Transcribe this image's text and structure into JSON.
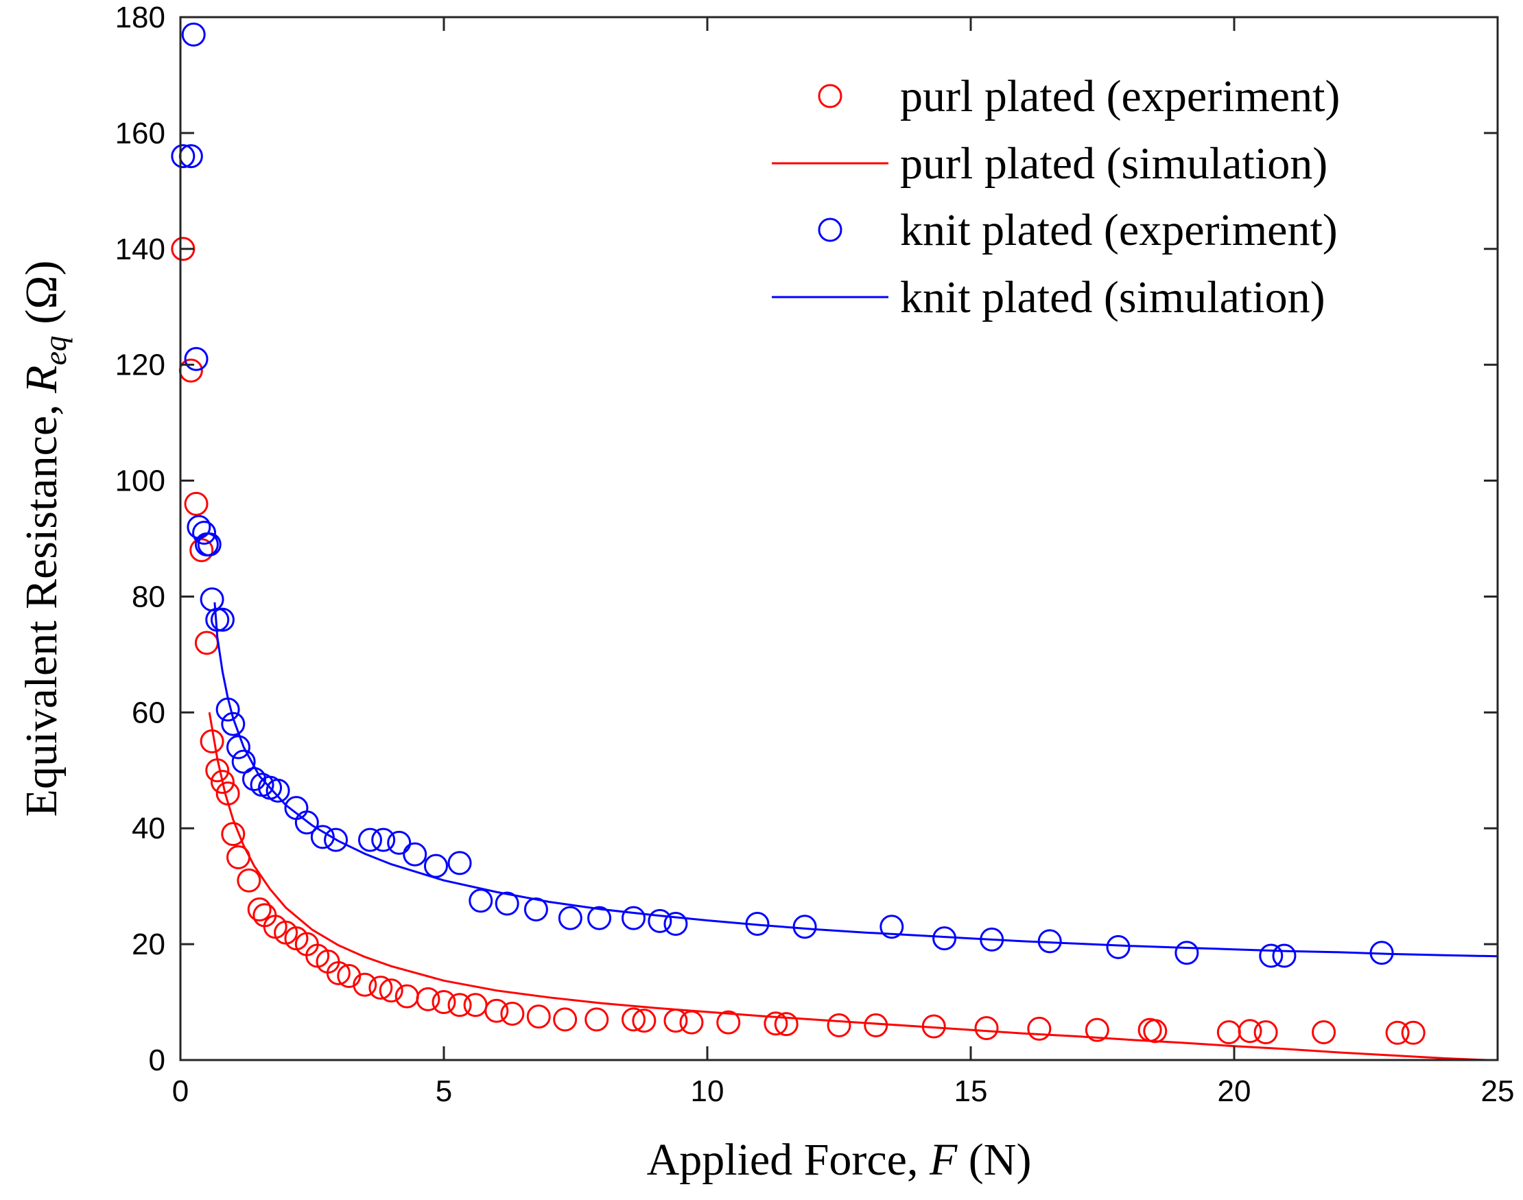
{
  "chart_data": {
    "type": "scatter",
    "title": "",
    "xlabel": "Applied Force, F (N)",
    "xlabel_parts": [
      "Applied Force, ",
      "F",
      " (N)"
    ],
    "ylabel": "Equivalent Resistance, R_eq (Ω)",
    "ylabel_parts": [
      "Equivalent Resistance, ",
      "R",
      "eq",
      " (Ω)"
    ],
    "xlim": [
      0,
      25
    ],
    "ylim": [
      0,
      180
    ],
    "xticks": [
      0,
      5,
      10,
      15,
      20,
      25
    ],
    "yticks": [
      0,
      20,
      40,
      60,
      80,
      100,
      120,
      140,
      160,
      180
    ],
    "grid": false,
    "legend_position": "top-right",
    "series": [
      {
        "name": "purl plated (experiment)",
        "kind": "markers",
        "color": "#ff0000",
        "points": [
          [
            0.05,
            140
          ],
          [
            0.2,
            119
          ],
          [
            0.3,
            96
          ],
          [
            0.4,
            88
          ],
          [
            0.5,
            72
          ],
          [
            0.6,
            55
          ],
          [
            0.7,
            50
          ],
          [
            0.8,
            48
          ],
          [
            0.9,
            46
          ],
          [
            1.0,
            39
          ],
          [
            1.1,
            35
          ],
          [
            1.3,
            31
          ],
          [
            1.5,
            26
          ],
          [
            1.6,
            25
          ],
          [
            1.8,
            23
          ],
          [
            2.0,
            22
          ],
          [
            2.2,
            21
          ],
          [
            2.4,
            20
          ],
          [
            2.6,
            18
          ],
          [
            2.8,
            17
          ],
          [
            3.0,
            15
          ],
          [
            3.2,
            14.5
          ],
          [
            3.5,
            13
          ],
          [
            3.8,
            12.5
          ],
          [
            4.0,
            12
          ],
          [
            4.3,
            11
          ],
          [
            4.7,
            10.5
          ],
          [
            5.0,
            10
          ],
          [
            5.3,
            9.5
          ],
          [
            5.6,
            9.5
          ],
          [
            6.0,
            8.5
          ],
          [
            6.3,
            8
          ],
          [
            6.8,
            7.5
          ],
          [
            7.3,
            7
          ],
          [
            7.9,
            7
          ],
          [
            8.6,
            7
          ],
          [
            8.8,
            6.8
          ],
          [
            9.4,
            6.8
          ],
          [
            9.7,
            6.5
          ],
          [
            10.4,
            6.5
          ],
          [
            11.3,
            6.3
          ],
          [
            11.5,
            6.2
          ],
          [
            12.5,
            6
          ],
          [
            13.2,
            6
          ],
          [
            14.3,
            5.8
          ],
          [
            15.3,
            5.5
          ],
          [
            16.3,
            5.4
          ],
          [
            17.4,
            5.2
          ],
          [
            18.4,
            5.2
          ],
          [
            18.5,
            5
          ],
          [
            19.9,
            4.8
          ],
          [
            20.3,
            5
          ],
          [
            20.6,
            4.8
          ],
          [
            21.7,
            4.8
          ],
          [
            23.1,
            4.7
          ],
          [
            23.4,
            4.7
          ]
        ]
      },
      {
        "name": "purl plated (simulation)",
        "kind": "line",
        "color": "#ff0000",
        "points": [
          [
            0.55,
            60
          ],
          [
            0.7,
            52
          ],
          [
            0.85,
            46
          ],
          [
            1.0,
            41.5
          ],
          [
            1.2,
            37
          ],
          [
            1.4,
            33.5
          ],
          [
            1.7,
            29.5
          ],
          [
            2.0,
            26.3
          ],
          [
            2.5,
            22.5
          ],
          [
            3.0,
            19.8
          ],
          [
            3.5,
            17.8
          ],
          [
            4.0,
            16.2
          ],
          [
            5.0,
            13.7
          ],
          [
            6.0,
            12
          ],
          [
            7.0,
            10.8
          ],
          [
            8.0,
            9.8
          ],
          [
            9.0,
            9
          ],
          [
            10.0,
            8.3
          ],
          [
            11.0,
            7.6
          ],
          [
            12.0,
            7
          ],
          [
            13.0,
            6.4
          ],
          [
            14.0,
            5.8
          ],
          [
            15.0,
            5.2
          ],
          [
            16.0,
            4.6
          ],
          [
            17.0,
            4.1
          ],
          [
            18.0,
            3.5
          ],
          [
            19.0,
            3
          ],
          [
            20.0,
            2.4
          ],
          [
            21.0,
            1.9
          ],
          [
            22.0,
            1.3
          ],
          [
            23.0,
            0.8
          ],
          [
            24.0,
            0.3
          ],
          [
            24.8,
            0
          ]
        ]
      },
      {
        "name": "knit plated (experiment)",
        "kind": "markers",
        "color": "#0000ff",
        "points": [
          [
            0.25,
            177
          ],
          [
            0.05,
            156
          ],
          [
            0.2,
            156
          ],
          [
            0.3,
            121
          ],
          [
            0.35,
            92
          ],
          [
            0.45,
            91
          ],
          [
            0.5,
            89
          ],
          [
            0.55,
            89
          ],
          [
            0.6,
            79.5
          ],
          [
            0.7,
            76
          ],
          [
            0.8,
            76
          ],
          [
            0.9,
            60.5
          ],
          [
            1.0,
            58
          ],
          [
            1.1,
            54
          ],
          [
            1.2,
            51.5
          ],
          [
            1.4,
            48.5
          ],
          [
            1.55,
            47.5
          ],
          [
            1.7,
            47
          ],
          [
            1.85,
            46.5
          ],
          [
            2.2,
            43.5
          ],
          [
            2.4,
            41
          ],
          [
            2.7,
            38.5
          ],
          [
            2.95,
            38
          ],
          [
            3.6,
            38
          ],
          [
            3.85,
            38
          ],
          [
            4.15,
            37.5
          ],
          [
            4.45,
            35.5
          ],
          [
            4.85,
            33.5
          ],
          [
            5.3,
            34
          ],
          [
            5.7,
            27.5
          ],
          [
            6.2,
            27
          ],
          [
            6.75,
            26
          ],
          [
            7.4,
            24.5
          ],
          [
            7.95,
            24.5
          ],
          [
            8.6,
            24.5
          ],
          [
            9.1,
            24
          ],
          [
            9.4,
            23.5
          ],
          [
            10.95,
            23.5
          ],
          [
            11.85,
            23
          ],
          [
            13.5,
            23
          ],
          [
            14.5,
            21
          ],
          [
            15.4,
            20.8
          ],
          [
            16.5,
            20.5
          ],
          [
            17.8,
            19.5
          ],
          [
            19.1,
            18.5
          ],
          [
            20.7,
            18
          ],
          [
            20.95,
            18
          ],
          [
            22.8,
            18.5
          ]
        ]
      },
      {
        "name": "knit plated (simulation)",
        "kind": "line",
        "color": "#0000ff",
        "points": [
          [
            0.65,
            79
          ],
          [
            0.7,
            73
          ],
          [
            0.8,
            67
          ],
          [
            0.9,
            62.5
          ],
          [
            1.0,
            59
          ],
          [
            1.2,
            54
          ],
          [
            1.5,
            49
          ],
          [
            2.0,
            44
          ],
          [
            2.5,
            40.5
          ],
          [
            3.0,
            37.8
          ],
          [
            3.5,
            35.6
          ],
          [
            4.0,
            33.8
          ],
          [
            5.0,
            31
          ],
          [
            6.0,
            29
          ],
          [
            7.0,
            27.3
          ],
          [
            8.0,
            26
          ],
          [
            9.0,
            25
          ],
          [
            10.0,
            24.1
          ],
          [
            11.0,
            23.3
          ],
          [
            12.0,
            22.6
          ],
          [
            13.0,
            22
          ],
          [
            14.0,
            21.5
          ],
          [
            15.0,
            21
          ],
          [
            16.0,
            20.5
          ],
          [
            17.0,
            20.1
          ],
          [
            18.0,
            19.7
          ],
          [
            19.0,
            19.4
          ],
          [
            20.0,
            19.1
          ],
          [
            21.0,
            18.8
          ],
          [
            22.0,
            18.6
          ],
          [
            23.0,
            18.3
          ],
          [
            24.0,
            18.1
          ],
          [
            25.0,
            17.9
          ]
        ]
      }
    ]
  }
}
